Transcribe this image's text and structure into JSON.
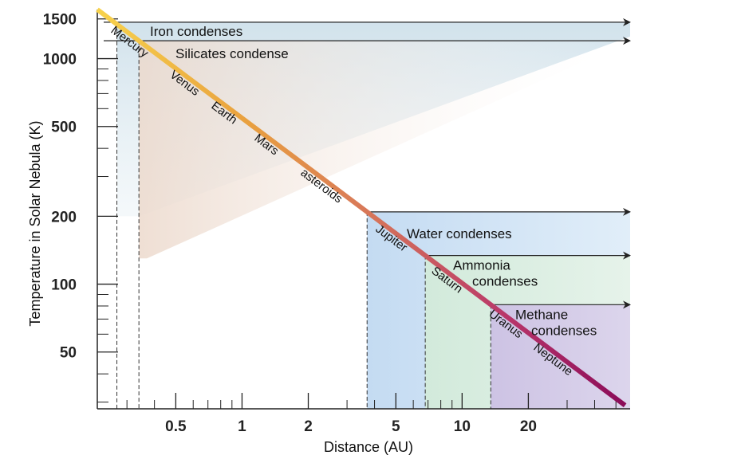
{
  "chart_data": {
    "type": "line",
    "title": "",
    "xlabel": "Distance (AU)",
    "ylabel": "Temperature in Solar Nebula (K)",
    "x_scale": "log",
    "y_scale": "log",
    "xlim": [
      0.22,
      58
    ],
    "ylim": [
      28,
      1650
    ],
    "x_ticks": [
      {
        "value": 0.5,
        "label": "0.5"
      },
      {
        "value": 1,
        "label": "1"
      },
      {
        "value": 2,
        "label": "2"
      },
      {
        "value": 5,
        "label": "5"
      },
      {
        "value": 10,
        "label": "10"
      },
      {
        "value": 20,
        "label": "20"
      }
    ],
    "y_ticks": [
      {
        "value": 50,
        "label": "50"
      },
      {
        "value": 100,
        "label": "100"
      },
      {
        "value": 200,
        "label": "200"
      },
      {
        "value": 500,
        "label": "500"
      },
      {
        "value": 1000,
        "label": "1000"
      },
      {
        "value": 1500,
        "label": "1500"
      }
    ],
    "x_minor_ticks": [
      0.3,
      0.4,
      0.6,
      0.7,
      0.8,
      0.9,
      3,
      4,
      6,
      7,
      8,
      9,
      30,
      40,
      50
    ],
    "y_minor_ticks": [
      30,
      40,
      60,
      70,
      80,
      90,
      300,
      400,
      600,
      700,
      800,
      900
    ],
    "series": [
      {
        "type": "line",
        "x": [
          0.22,
          55
        ],
        "y": [
          1650,
          29
        ],
        "gradient": [
          "#f7c948",
          "#e89a3c",
          "#d9705a",
          "#b0306e",
          "#8e0d5a"
        ]
      }
    ],
    "condensation_lines": [
      {
        "label": "Iron condenses",
        "temperature": 1450,
        "distance": 0.27,
        "color": "#dceaf0"
      },
      {
        "label": "Silicates condense",
        "temperature": 1200,
        "distance": 0.34,
        "color": "#f3e4d9"
      },
      {
        "label": "Water condenses",
        "temperature": 200,
        "distance": 3.7,
        "color": "#d3e7f7"
      },
      {
        "label": "Ammonia\ncondenses",
        "temperature": 130,
        "distance": 6.8,
        "color": "#d8eedd"
      },
      {
        "label": "Methane\ncondenses",
        "temperature": 80,
        "distance": 13.5,
        "color": "#d4cde8"
      }
    ],
    "planets": [
      "Mercury",
      "Venus",
      "Earth",
      "Mars",
      "asteroids",
      "Jupiter",
      "Saturn",
      "Uranus",
      "Neptune"
    ],
    "grid": false,
    "legend": "none"
  }
}
